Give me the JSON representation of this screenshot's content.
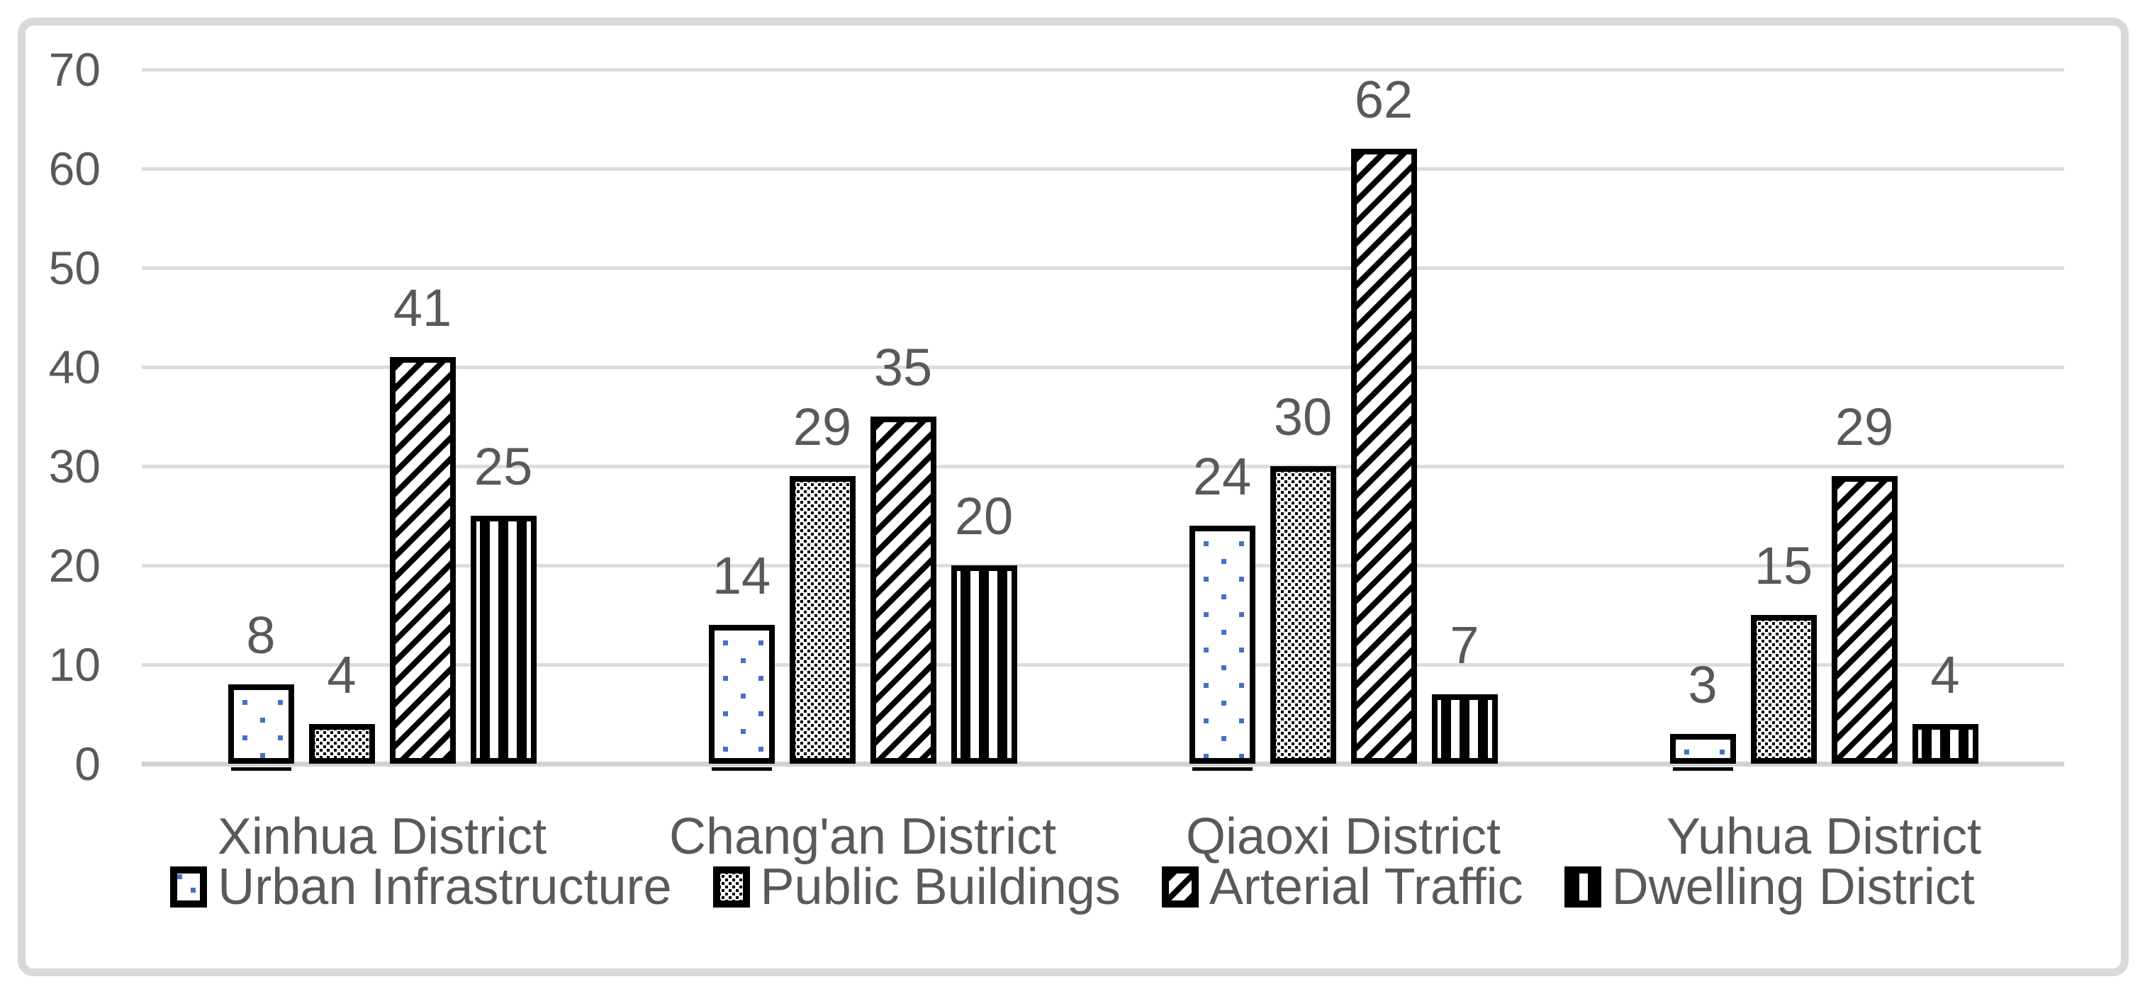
{
  "chart_data": {
    "type": "bar",
    "title": "",
    "xlabel": "",
    "ylabel": "",
    "categories": [
      "Xinhua District",
      "Chang'an District",
      "Qiaoxi District",
      "Yuhua District"
    ],
    "series": [
      {
        "name": "Urban Infrastructure",
        "pattern": "sparse-blue-square-dots",
        "values": [
          8,
          14,
          24,
          3
        ]
      },
      {
        "name": "Public Buildings",
        "pattern": "dense-black-square-dots",
        "values": [
          4,
          29,
          30,
          15
        ]
      },
      {
        "name": "Arterial Traffic",
        "pattern": "diagonal-stripes",
        "values": [
          41,
          35,
          62,
          29
        ]
      },
      {
        "name": "Dwelling District",
        "pattern": "vertical-stripes",
        "values": [
          25,
          20,
          7,
          4
        ]
      }
    ],
    "ylim": [
      0,
      70
    ],
    "yticks": [
      0,
      10,
      20,
      30,
      40,
      50,
      60,
      70
    ],
    "grid": true,
    "data_labels": true,
    "legend_position": "bottom"
  },
  "colors": {
    "text": "#595959",
    "gridline": "#dcdcdc",
    "axis_baseline": "#d2d2d2",
    "frame_border": "#d9d9d9",
    "pattern_black": "#000000",
    "dot_blue": "#4472c4",
    "background": "#ffffff"
  }
}
